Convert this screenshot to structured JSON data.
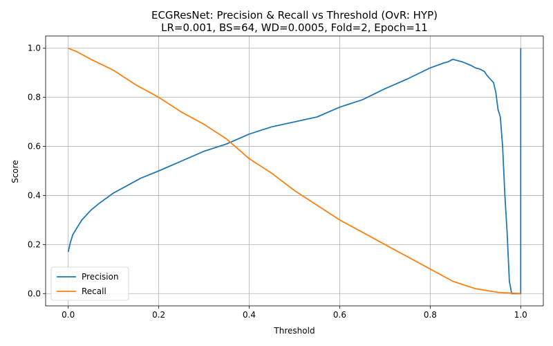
{
  "chart_data": {
    "type": "line",
    "title": "ECGResNet: Precision & Recall vs Threshold (OvR: HYP)",
    "subtitle": "LR=0.001, BS=64, WD=0.0005, Fold=2, Epoch=11",
    "xlabel": "Threshold",
    "ylabel": "Score",
    "xlim": [
      -0.05,
      1.05
    ],
    "ylim": [
      -0.05,
      1.05
    ],
    "xticks": [
      "0.0",
      "0.2",
      "0.4",
      "0.6",
      "0.8",
      "1.0"
    ],
    "yticks": [
      "0.0",
      "0.2",
      "0.4",
      "0.6",
      "0.8",
      "1.0"
    ],
    "grid": true,
    "legend_position": "lower-left",
    "series": [
      {
        "name": "Precision",
        "color": "#1f77b4",
        "x": [
          0.0,
          0.005,
          0.01,
          0.02,
          0.03,
          0.05,
          0.07,
          0.1,
          0.13,
          0.16,
          0.2,
          0.25,
          0.3,
          0.35,
          0.4,
          0.45,
          0.5,
          0.55,
          0.6,
          0.65,
          0.7,
          0.75,
          0.8,
          0.83,
          0.84,
          0.85,
          0.87,
          0.89,
          0.9,
          0.91,
          0.92,
          0.925,
          0.93,
          0.935,
          0.94,
          0.945,
          0.95,
          0.955,
          0.96,
          0.965,
          0.97,
          0.975,
          0.98,
          0.99,
          1.0,
          1.0
        ],
        "y": [
          0.17,
          0.21,
          0.24,
          0.27,
          0.3,
          0.34,
          0.37,
          0.41,
          0.44,
          0.47,
          0.5,
          0.54,
          0.58,
          0.61,
          0.65,
          0.68,
          0.7,
          0.72,
          0.76,
          0.79,
          0.835,
          0.875,
          0.92,
          0.94,
          0.945,
          0.955,
          0.945,
          0.93,
          0.92,
          0.915,
          0.905,
          0.89,
          0.88,
          0.87,
          0.86,
          0.82,
          0.75,
          0.72,
          0.6,
          0.4,
          0.25,
          0.05,
          0.0,
          0.0,
          0.0,
          1.0
        ]
      },
      {
        "name": "Recall",
        "color": "#ff7f0e",
        "x": [
          0.0,
          0.02,
          0.05,
          0.1,
          0.15,
          0.2,
          0.25,
          0.3,
          0.35,
          0.4,
          0.45,
          0.5,
          0.55,
          0.6,
          0.65,
          0.7,
          0.75,
          0.8,
          0.85,
          0.9,
          0.95,
          1.0
        ],
        "y": [
          1.0,
          0.985,
          0.955,
          0.91,
          0.85,
          0.8,
          0.74,
          0.69,
          0.63,
          0.55,
          0.49,
          0.42,
          0.36,
          0.3,
          0.25,
          0.2,
          0.15,
          0.1,
          0.05,
          0.02,
          0.005,
          0.0
        ]
      }
    ]
  }
}
